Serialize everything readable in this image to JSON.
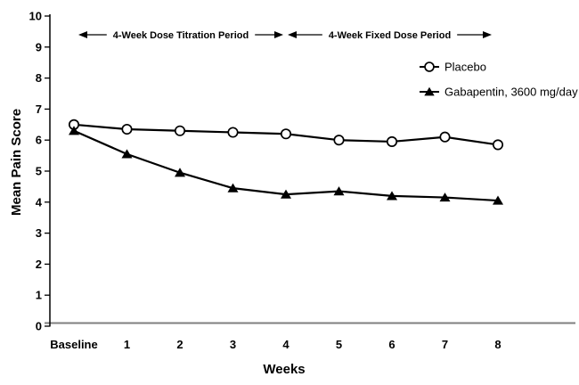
{
  "chart_data": {
    "type": "line",
    "title": "",
    "xlabel": "Weeks",
    "ylabel": "Mean Pain Score",
    "x_categories": [
      "Baseline",
      "1",
      "2",
      "3",
      "4",
      "5",
      "6",
      "7",
      "8"
    ],
    "ylim": [
      0,
      10
    ],
    "y_ticks": [
      0,
      1,
      2,
      3,
      4,
      5,
      6,
      7,
      8,
      9,
      10
    ],
    "grid": false,
    "legend_position": "upper-right",
    "series": [
      {
        "name": "Placebo",
        "marker": "open-circle",
        "color": "#000000",
        "values": [
          6.5,
          6.35,
          6.3,
          6.25,
          6.2,
          6.0,
          5.95,
          6.1,
          5.85
        ]
      },
      {
        "name": "Gabapentin, 3600 mg/day",
        "marker": "filled-triangle",
        "color": "#000000",
        "values": [
          6.3,
          5.55,
          4.95,
          4.45,
          4.25,
          4.35,
          4.2,
          4.15,
          4.05
        ]
      }
    ],
    "annotations": [
      {
        "label": "4-Week Dose Titration Period",
        "x_start": 0,
        "x_end": 4
      },
      {
        "label": "4-Week Fixed Dose Period",
        "x_start": 4,
        "x_end": 8
      }
    ]
  },
  "colors": {
    "series_line": "#000000",
    "x_axis_line": "#7f7f7f",
    "y_axis_line": "#000000",
    "text": "#000000",
    "marker_fill_open": "#ffffff",
    "background": "#ffffff"
  }
}
